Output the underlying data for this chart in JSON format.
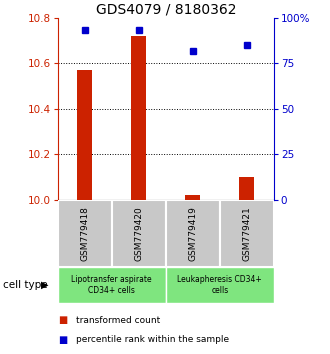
{
  "title": "GDS4079 / 8180362",
  "samples": [
    "GSM779418",
    "GSM779420",
    "GSM779419",
    "GSM779421"
  ],
  "red_values": [
    10.57,
    10.72,
    10.02,
    10.1
  ],
  "blue_values": [
    93,
    93,
    82,
    85
  ],
  "ylim_left": [
    10.0,
    10.8
  ],
  "ylim_right": [
    0,
    100
  ],
  "yticks_left": [
    10.0,
    10.2,
    10.4,
    10.6,
    10.8
  ],
  "yticks_right": [
    0,
    25,
    50,
    75,
    100
  ],
  "ytick_labels_right": [
    "0",
    "25",
    "50",
    "75",
    "100%"
  ],
  "groups": [
    {
      "label": "Lipotransfer aspirate\nCD34+ cells",
      "samples": [
        0,
        1
      ],
      "color": "#7FE57F"
    },
    {
      "label": "Leukapheresis CD34+\ncells",
      "samples": [
        2,
        3
      ],
      "color": "#7FE57F"
    }
  ],
  "cell_type_label": "cell type",
  "legend_red": "transformed count",
  "legend_blue": "percentile rank within the sample",
  "bar_color": "#CC2200",
  "dot_color": "#0000CC",
  "bg_color": "#C8C8C8",
  "title_fontsize": 10,
  "tick_fontsize": 7.5
}
